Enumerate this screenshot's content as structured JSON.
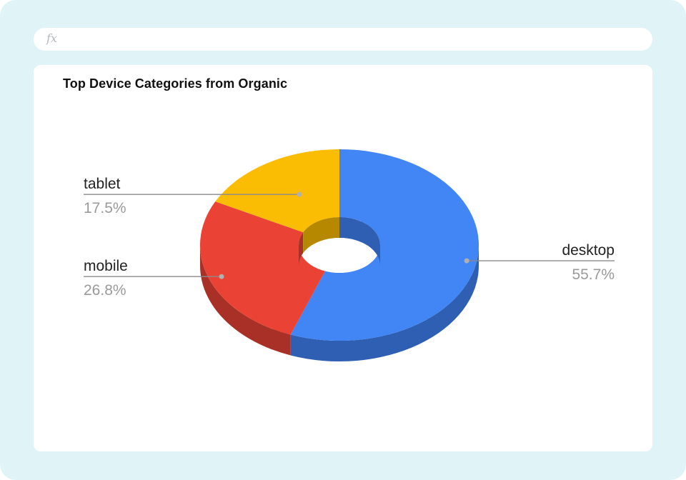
{
  "formula_bar": {
    "icon_text": "fx"
  },
  "chart_data": {
    "type": "pie",
    "title": "Top Device Categories from Organic",
    "categories": [
      "desktop",
      "mobile",
      "tablet"
    ],
    "values": [
      55.7,
      26.8,
      17.5
    ],
    "value_labels": [
      "55.7%",
      "26.8%",
      "17.5%"
    ],
    "donut": true,
    "three_d": true,
    "legend": "none",
    "colors": {
      "desktop": "#4285f4",
      "mobile": "#ea4335",
      "tablet": "#fbbc04"
    },
    "side_colors": {
      "desktop": "#2f5fb3",
      "mobile": "#a83027",
      "tablet": "#b58800"
    }
  }
}
